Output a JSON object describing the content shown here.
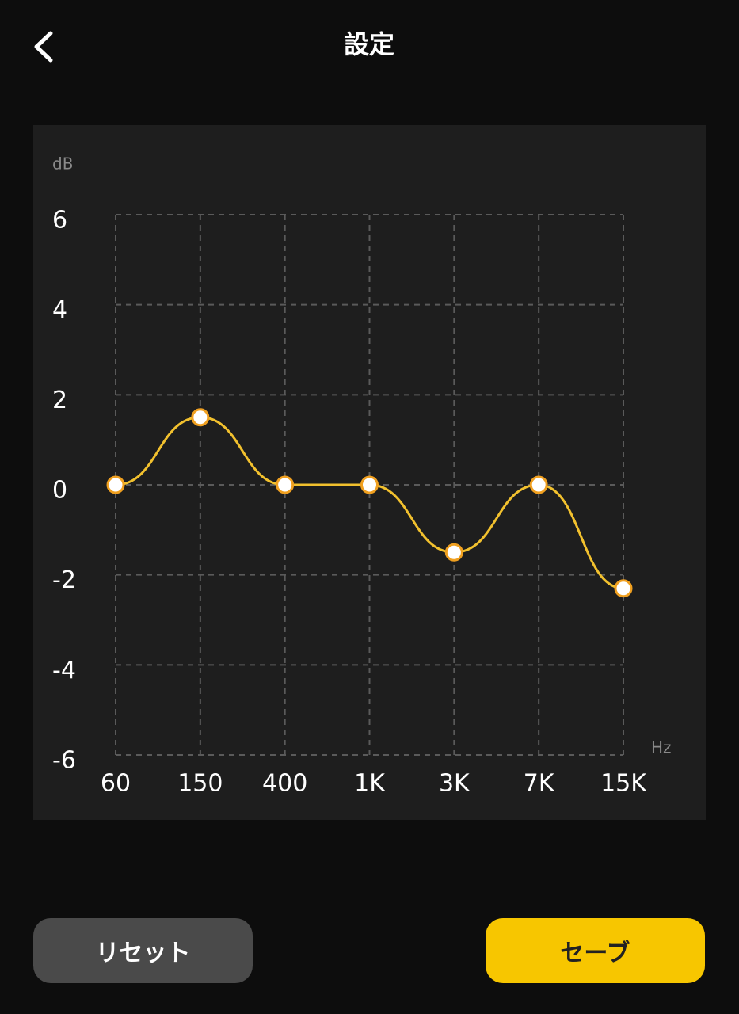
{
  "header": {
    "title": "設定"
  },
  "chart_data": {
    "type": "line",
    "y_label": "dB",
    "x_label": "Hz",
    "categories": [
      "60",
      "150",
      "400",
      "1K",
      "3K",
      "7K",
      "15K"
    ],
    "values": [
      0,
      1.5,
      0,
      0,
      -1.5,
      0,
      -2.3
    ],
    "color": "#f2c12e",
    "ylim": [
      -6,
      6
    ],
    "yticks": [
      6,
      4,
      2,
      0,
      -2,
      -4,
      -6
    ],
    "grid": true
  },
  "buttons": {
    "reset": "リセット",
    "save": "セーブ"
  }
}
